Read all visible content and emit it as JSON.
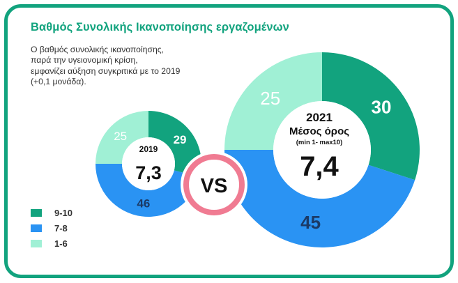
{
  "title": "Βαθμός Συνολικής Ικανοποίησης εργαζομένων",
  "note": [
    "Ο βαθμός συνολικής ικανοποίησης,",
    "παρά την υγειονομική κρίση,",
    "εμφανίζει αύξηση συγκριτικά με το 2019",
    "(+0,1 μονάδα)."
  ],
  "colors": {
    "high": "#12a37e",
    "mid": "#2a93f3",
    "low": "#a0f0d5",
    "ring": "#f07b92",
    "frame": "#12a37e"
  },
  "legend": [
    {
      "label": "9-10",
      "color": "#12a37e"
    },
    {
      "label": "7-8",
      "color": "#2a93f3"
    },
    {
      "label": "1-6",
      "color": "#a0f0d5"
    }
  ],
  "vs_label": "VS",
  "chart_data": [
    {
      "type": "pie",
      "year": "2019",
      "center_value": "7,3",
      "categories": [
        "9-10",
        "7-8",
        "1-6"
      ],
      "values": [
        29,
        46,
        25
      ]
    },
    {
      "type": "pie",
      "year": "2021",
      "subtitle": "Μέσος όρος",
      "range_note": "(min 1- max10)",
      "center_value": "7,4",
      "categories": [
        "9-10",
        "7-8",
        "1-6"
      ],
      "values": [
        30,
        45,
        25
      ]
    }
  ]
}
